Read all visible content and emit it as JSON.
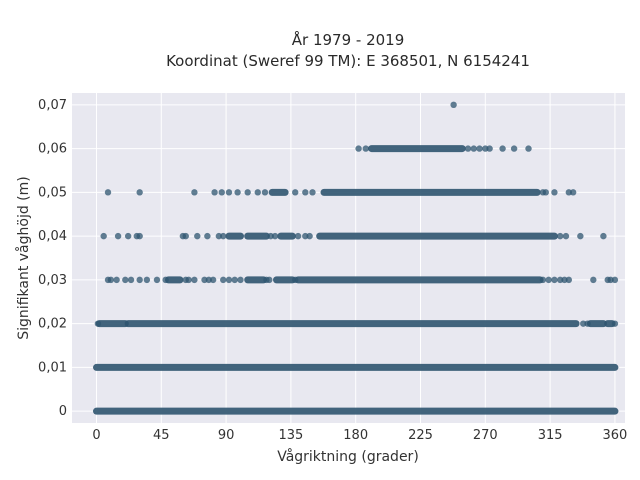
{
  "chart_data": {
    "type": "scatter",
    "title": "År 1979 - 2019",
    "subtitle": "Koordinat (Sweref 99 TM): E 368501, N 6154241",
    "xlabel": "Vågriktning (grader)",
    "ylabel": "Signifikant våghöjd (m)",
    "xlim": [
      -17,
      367
    ],
    "ylim": [
      -0.0027,
      0.0727
    ],
    "x_ticks": [
      0,
      45,
      90,
      135,
      180,
      225,
      270,
      315,
      360
    ],
    "x_tick_labels": [
      "0",
      "45",
      "90",
      "135",
      "180",
      "225",
      "270",
      "315",
      "360"
    ],
    "y_ticks": [
      0,
      0.01,
      0.02,
      0.03,
      0.04,
      0.05,
      0.06,
      0.07
    ],
    "y_tick_labels": [
      "0",
      "0,01",
      "0,02",
      "0,03",
      "0,04",
      "0,05",
      "0,06",
      "0,07"
    ],
    "grid": true,
    "marker_color": "#2f5570",
    "background_color": "#e8e8f0",
    "bands": [
      {
        "y": 0,
        "x_ranges": [
          [
            0,
            360
          ]
        ]
      },
      {
        "y": 0.01,
        "x_ranges": [
          [
            0,
            360
          ]
        ]
      },
      {
        "y": 0.02,
        "x_ranges": [
          [
            2,
            20
          ],
          [
            22,
            333
          ],
          [
            343,
            352
          ],
          [
            355,
            358
          ]
        ]
      },
      {
        "y": 0.03,
        "x_ranges": [
          [
            50,
            58
          ],
          [
            105,
            116
          ],
          [
            125,
            136
          ],
          [
            140,
            308
          ]
        ]
      },
      {
        "y": 0.04,
        "x_ranges": [
          [
            92,
            100
          ],
          [
            105,
            118
          ],
          [
            128,
            136
          ],
          [
            155,
            318
          ]
        ]
      },
      {
        "y": 0.05,
        "x_ranges": [
          [
            122,
            131
          ],
          [
            158,
            306
          ]
        ]
      },
      {
        "y": 0.06,
        "x_ranges": [
          [
            191,
            254
          ]
        ]
      }
    ],
    "points": [
      {
        "x": 8,
        "y": 0.05
      },
      {
        "x": 30,
        "y": 0.05
      },
      {
        "x": 68,
        "y": 0.05
      },
      {
        "x": 82,
        "y": 0.05
      },
      {
        "x": 87,
        "y": 0.05
      },
      {
        "x": 92,
        "y": 0.05
      },
      {
        "x": 98,
        "y": 0.05
      },
      {
        "x": 105,
        "y": 0.05
      },
      {
        "x": 112,
        "y": 0.05
      },
      {
        "x": 117,
        "y": 0.05
      },
      {
        "x": 138,
        "y": 0.05
      },
      {
        "x": 145,
        "y": 0.05
      },
      {
        "x": 150,
        "y": 0.05
      },
      {
        "x": 310,
        "y": 0.05
      },
      {
        "x": 312,
        "y": 0.05
      },
      {
        "x": 318,
        "y": 0.05
      },
      {
        "x": 328,
        "y": 0.05
      },
      {
        "x": 331,
        "y": 0.05
      },
      {
        "x": 5,
        "y": 0.04
      },
      {
        "x": 15,
        "y": 0.04
      },
      {
        "x": 22,
        "y": 0.04
      },
      {
        "x": 28,
        "y": 0.04
      },
      {
        "x": 30,
        "y": 0.04
      },
      {
        "x": 60,
        "y": 0.04
      },
      {
        "x": 62,
        "y": 0.04
      },
      {
        "x": 70,
        "y": 0.04
      },
      {
        "x": 77,
        "y": 0.04
      },
      {
        "x": 85,
        "y": 0.04
      },
      {
        "x": 88,
        "y": 0.04
      },
      {
        "x": 121,
        "y": 0.04
      },
      {
        "x": 124,
        "y": 0.04
      },
      {
        "x": 140,
        "y": 0.04
      },
      {
        "x": 145,
        "y": 0.04
      },
      {
        "x": 148,
        "y": 0.04
      },
      {
        "x": 322,
        "y": 0.04
      },
      {
        "x": 326,
        "y": 0.04
      },
      {
        "x": 336,
        "y": 0.04
      },
      {
        "x": 352,
        "y": 0.04
      },
      {
        "x": 8,
        "y": 0.03
      },
      {
        "x": 10,
        "y": 0.03
      },
      {
        "x": 14,
        "y": 0.03
      },
      {
        "x": 20,
        "y": 0.03
      },
      {
        "x": 24,
        "y": 0.03
      },
      {
        "x": 30,
        "y": 0.03
      },
      {
        "x": 35,
        "y": 0.03
      },
      {
        "x": 42,
        "y": 0.03
      },
      {
        "x": 48,
        "y": 0.03
      },
      {
        "x": 62,
        "y": 0.03
      },
      {
        "x": 64,
        "y": 0.03
      },
      {
        "x": 68,
        "y": 0.03
      },
      {
        "x": 75,
        "y": 0.03
      },
      {
        "x": 78,
        "y": 0.03
      },
      {
        "x": 81,
        "y": 0.03
      },
      {
        "x": 88,
        "y": 0.03
      },
      {
        "x": 92,
        "y": 0.03
      },
      {
        "x": 96,
        "y": 0.03
      },
      {
        "x": 100,
        "y": 0.03
      },
      {
        "x": 118,
        "y": 0.03
      },
      {
        "x": 120,
        "y": 0.03
      },
      {
        "x": 138,
        "y": 0.03
      },
      {
        "x": 310,
        "y": 0.03
      },
      {
        "x": 314,
        "y": 0.03
      },
      {
        "x": 318,
        "y": 0.03
      },
      {
        "x": 322,
        "y": 0.03
      },
      {
        "x": 325,
        "y": 0.03
      },
      {
        "x": 328,
        "y": 0.03
      },
      {
        "x": 345,
        "y": 0.03
      },
      {
        "x": 355,
        "y": 0.03
      },
      {
        "x": 357,
        "y": 0.03
      },
      {
        "x": 360,
        "y": 0.03
      },
      {
        "x": 182,
        "y": 0.06
      },
      {
        "x": 187,
        "y": 0.06
      },
      {
        "x": 258,
        "y": 0.06
      },
      {
        "x": 262,
        "y": 0.06
      },
      {
        "x": 266,
        "y": 0.06
      },
      {
        "x": 270,
        "y": 0.06
      },
      {
        "x": 273,
        "y": 0.06
      },
      {
        "x": 282,
        "y": 0.06
      },
      {
        "x": 290,
        "y": 0.06
      },
      {
        "x": 300,
        "y": 0.06
      },
      {
        "x": 1,
        "y": 0.02
      },
      {
        "x": 338,
        "y": 0.02
      },
      {
        "x": 341,
        "y": 0.02
      },
      {
        "x": 360,
        "y": 0.02
      },
      {
        "x": 248,
        "y": 0.07
      }
    ]
  }
}
